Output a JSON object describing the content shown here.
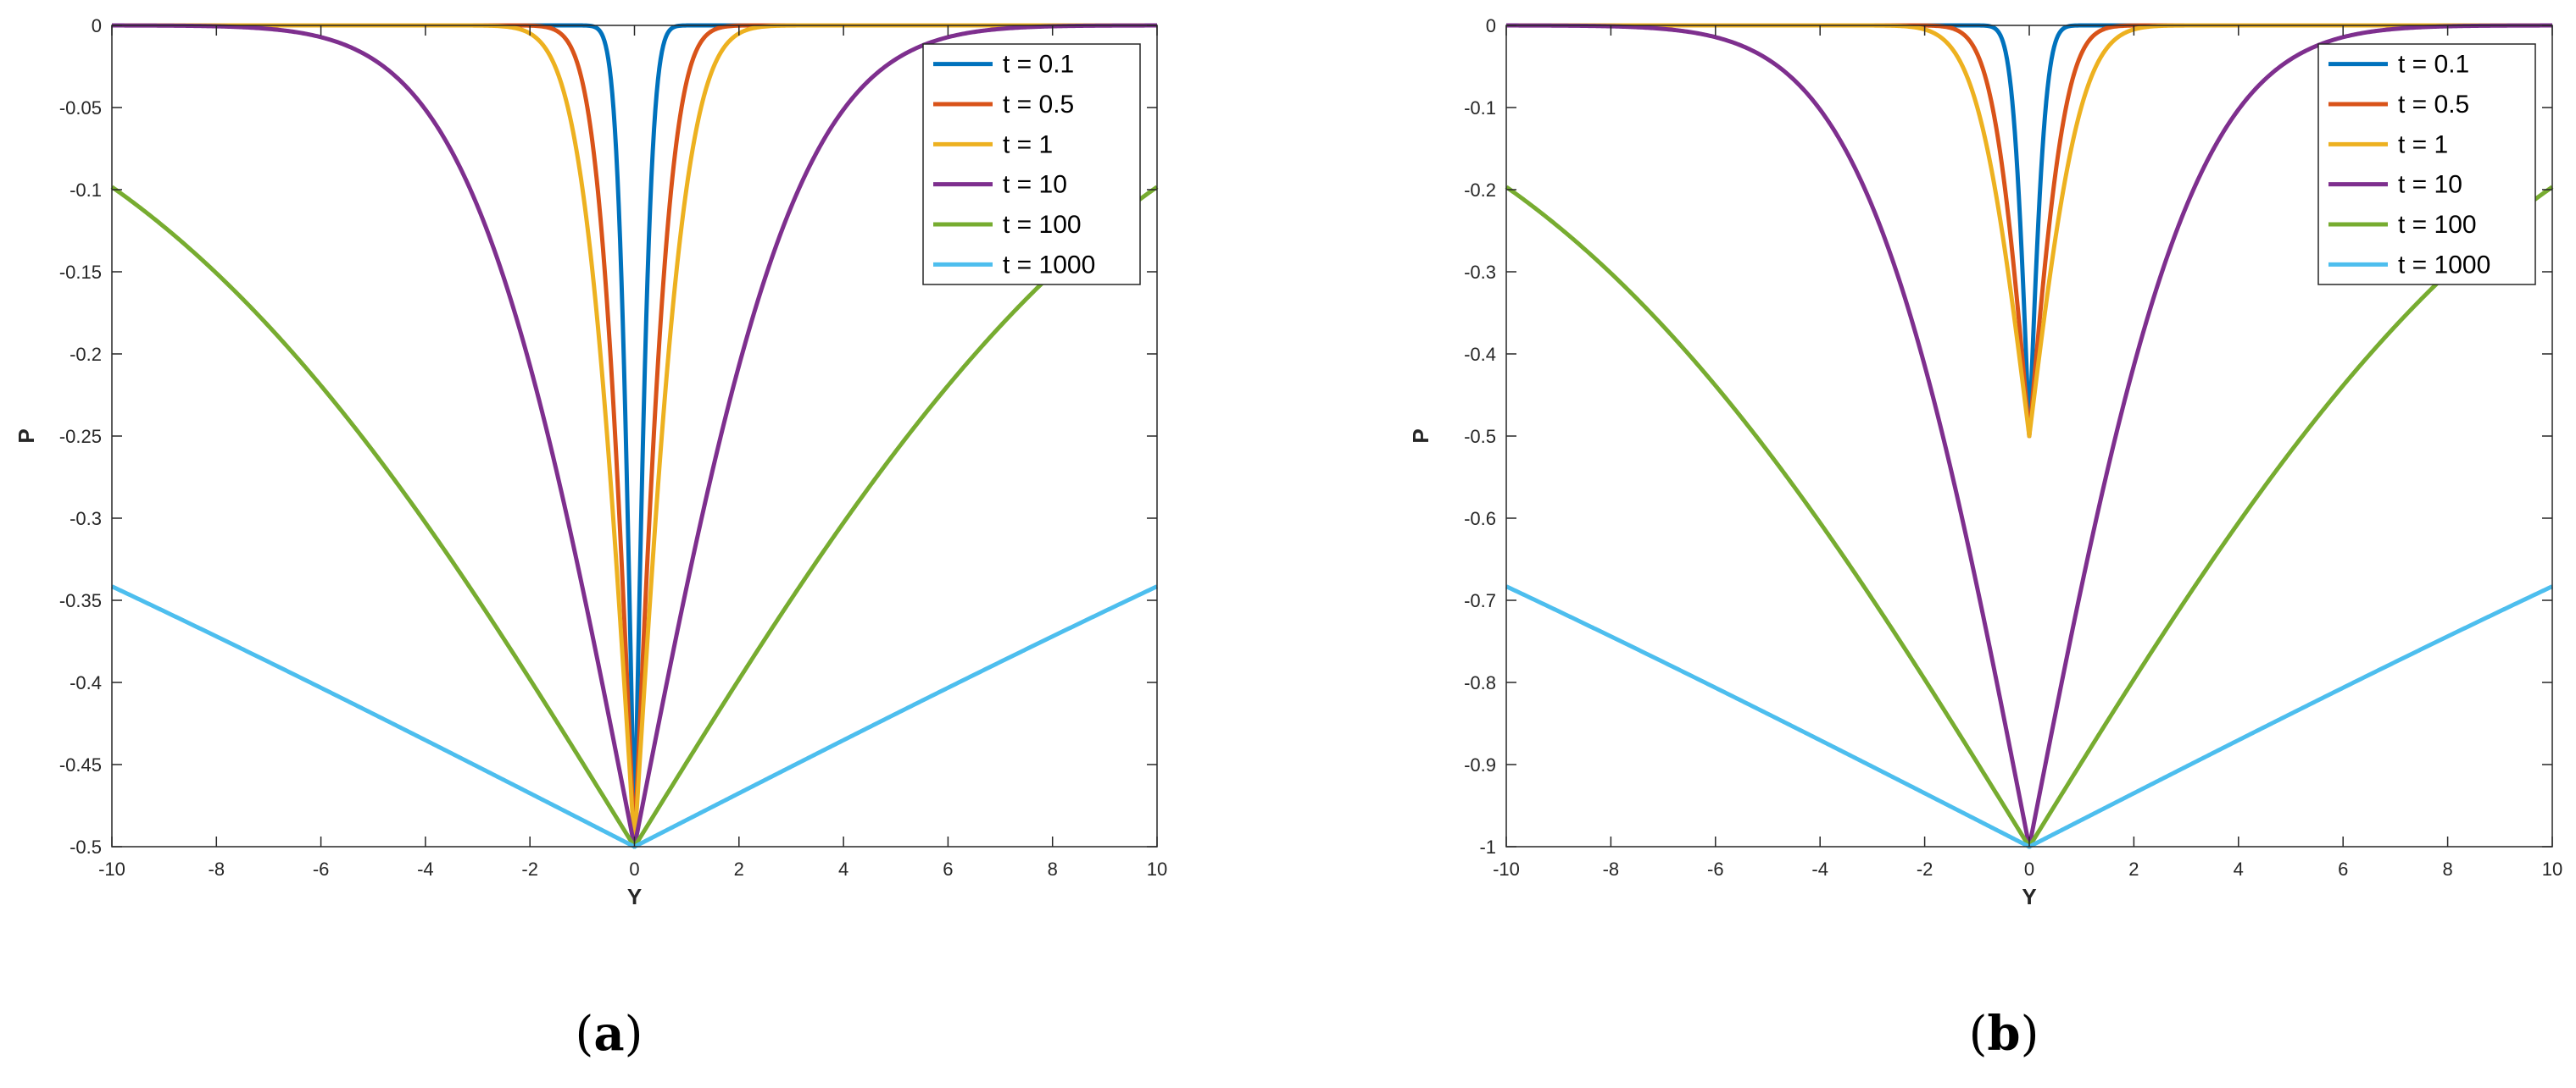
{
  "chart_data": [
    {
      "type": "line",
      "panel_label": "a",
      "xlabel": "Y",
      "ylabel": "P",
      "xlim": [
        -10,
        10
      ],
      "ylim": [
        -0.5,
        0
      ],
      "xticks": [
        "-10",
        "-8",
        "-6",
        "-4",
        "-2",
        "0",
        "2",
        "4",
        "6",
        "8",
        "10"
      ],
      "yticks": [
        "0",
        "-0.05",
        "-0.1",
        "-0.15",
        "-0.2",
        "-0.25",
        "-0.3",
        "-0.35",
        "-0.4",
        "-0.45",
        "-0.5"
      ],
      "ytick_values": [
        0,
        -0.05,
        -0.1,
        -0.15,
        -0.2,
        -0.25,
        -0.3,
        -0.35,
        -0.4,
        -0.45,
        -0.5
      ],
      "min_value": -0.5,
      "legend_position": "top-right",
      "series": [
        {
          "name": "t = 0.1",
          "t": 0.1,
          "color": "#0072BD"
        },
        {
          "name": "t = 0.5",
          "t": 0.5,
          "color": "#D95319"
        },
        {
          "name": "t = 1",
          "t": 1,
          "color": "#EDB120"
        },
        {
          "name": "t = 10",
          "t": 10,
          "color": "#7E2F8E"
        },
        {
          "name": "t = 100",
          "t": 100,
          "color": "#77AC30"
        },
        {
          "name": "t = 1000",
          "t": 1000,
          "color": "#4DBEEE"
        }
      ],
      "grid": false
    },
    {
      "type": "line",
      "panel_label": "b",
      "xlabel": "Y",
      "ylabel": "P",
      "xlim": [
        -10,
        10
      ],
      "ylim": [
        -1,
        0
      ],
      "xticks": [
        "-10",
        "-8",
        "-6",
        "-4",
        "-2",
        "0",
        "2",
        "4",
        "6",
        "8",
        "10"
      ],
      "yticks": [
        "0",
        "-0.1",
        "-0.2",
        "-0.3",
        "-0.4",
        "-0.5",
        "-0.6",
        "-0.7",
        "-0.8",
        "-0.9",
        "-1"
      ],
      "ytick_values": [
        0,
        -0.1,
        -0.2,
        -0.3,
        -0.4,
        -0.5,
        -0.6,
        -0.7,
        -0.8,
        -0.9,
        -1
      ],
      "min_value": -1,
      "short_time_min": -0.5,
      "legend_position": "top-right",
      "series": [
        {
          "name": "t = 0.1",
          "t": 0.1,
          "color": "#0072BD"
        },
        {
          "name": "t = 0.5",
          "t": 0.5,
          "color": "#D95319"
        },
        {
          "name": "t = 1",
          "t": 1,
          "color": "#EDB120"
        },
        {
          "name": "t = 10",
          "t": 10,
          "color": "#7E2F8E"
        },
        {
          "name": "t = 100",
          "t": 100,
          "color": "#77AC30"
        },
        {
          "name": "t = 1000",
          "t": 1000,
          "color": "#4DBEEE"
        }
      ],
      "grid": false
    }
  ]
}
